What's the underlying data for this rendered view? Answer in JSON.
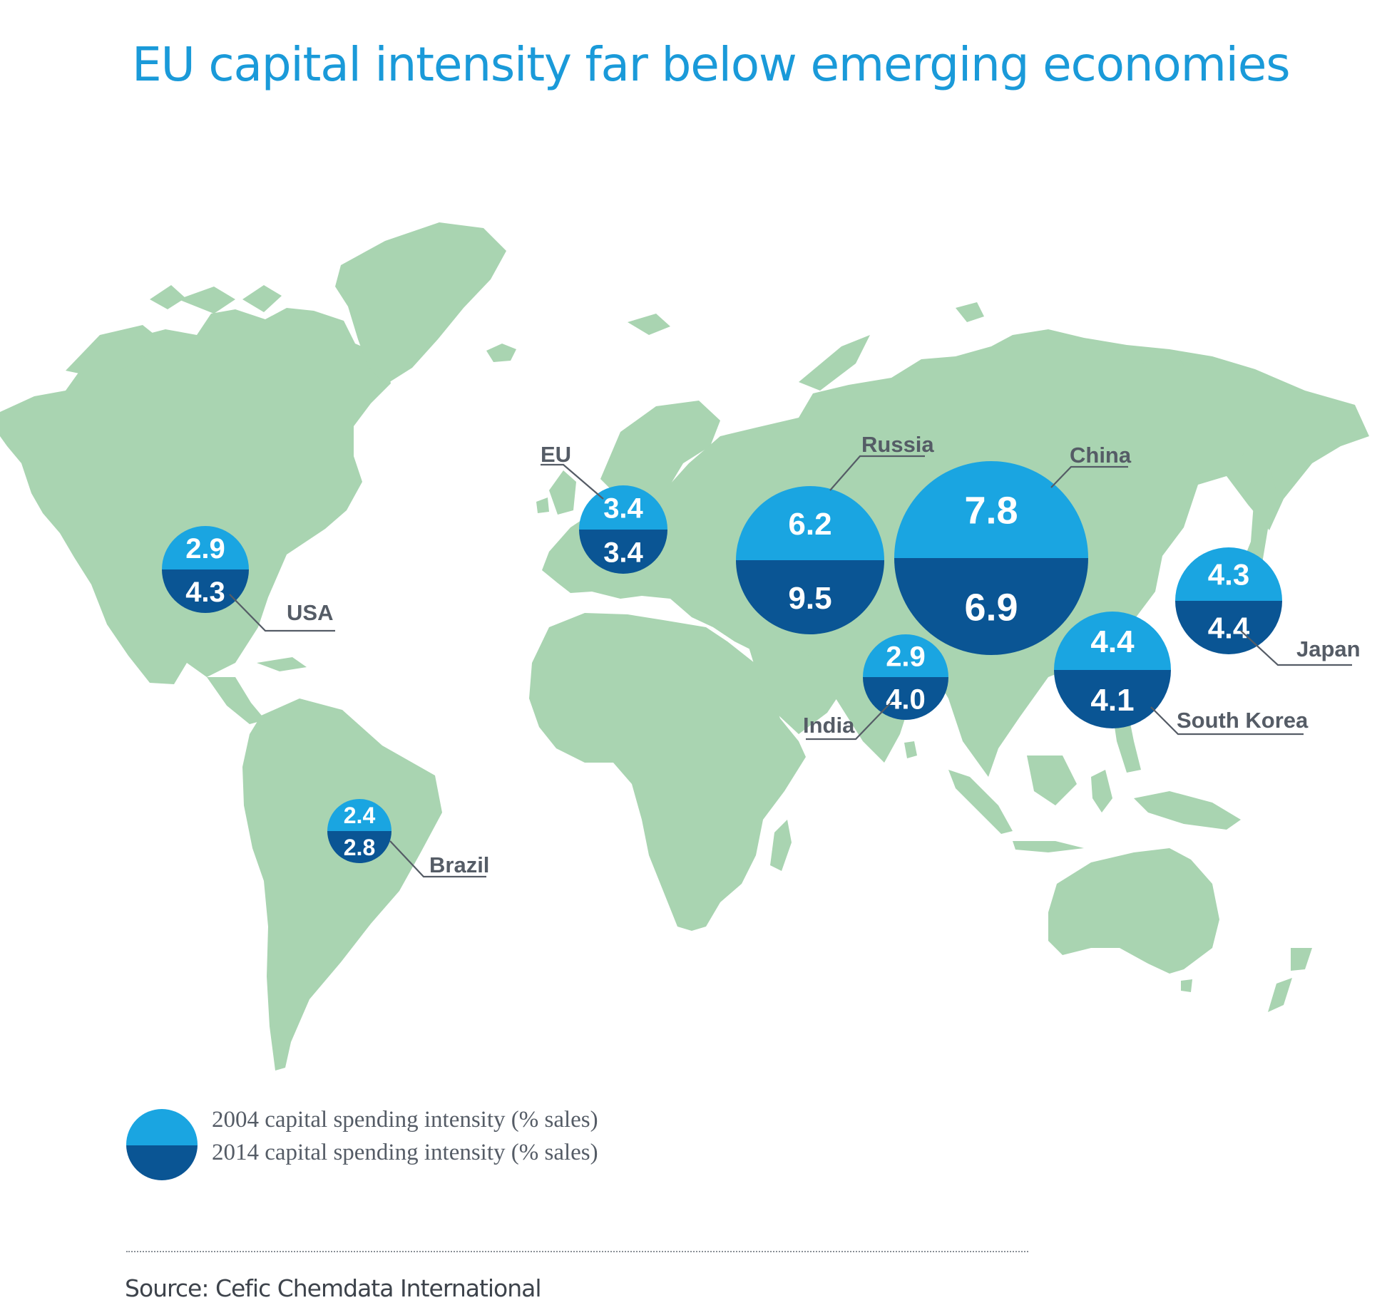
{
  "title": "EU capital intensity far below emerging economies",
  "colors": {
    "land": "#a9d4b1",
    "value_2004": "#1aa5e1",
    "value_2014": "#0a5594",
    "label_text": "#555c66",
    "title_text": "#1a9ad9"
  },
  "chart_data": {
    "type": "proportional-symbol map",
    "title": "EU capital intensity far below emerging economies",
    "series": [
      {
        "name": "2004 capital spending intensity (% sales)"
      },
      {
        "name": "2014 capital spending intensity (% sales)"
      }
    ],
    "countries": [
      {
        "key": "usa",
        "name": "USA",
        "v2004": "2.9",
        "v2014": "4.3"
      },
      {
        "key": "eu",
        "name": "EU",
        "v2004": "3.4",
        "v2014": "3.4"
      },
      {
        "key": "russia",
        "name": "Russia",
        "v2004": "6.2",
        "v2014": "9.5"
      },
      {
        "key": "china",
        "name": "China",
        "v2004": "7.8",
        "v2014": "6.9"
      },
      {
        "key": "india",
        "name": "India",
        "v2004": "2.9",
        "v2014": "4.0"
      },
      {
        "key": "korea",
        "name": "South Korea",
        "v2004": "4.4",
        "v2014": "4.1"
      },
      {
        "key": "japan",
        "name": "Japan",
        "v2004": "4.3",
        "v2014": "4.4"
      },
      {
        "key": "brazil",
        "name": "Brazil",
        "v2004": "2.4",
        "v2014": "2.8"
      }
    ]
  },
  "legend": {
    "label_2004": "2004 capital spending intensity (% sales)",
    "label_2014": "2014 capital spending intensity (% sales)"
  },
  "source": "Source: Cefic Chemdata International"
}
